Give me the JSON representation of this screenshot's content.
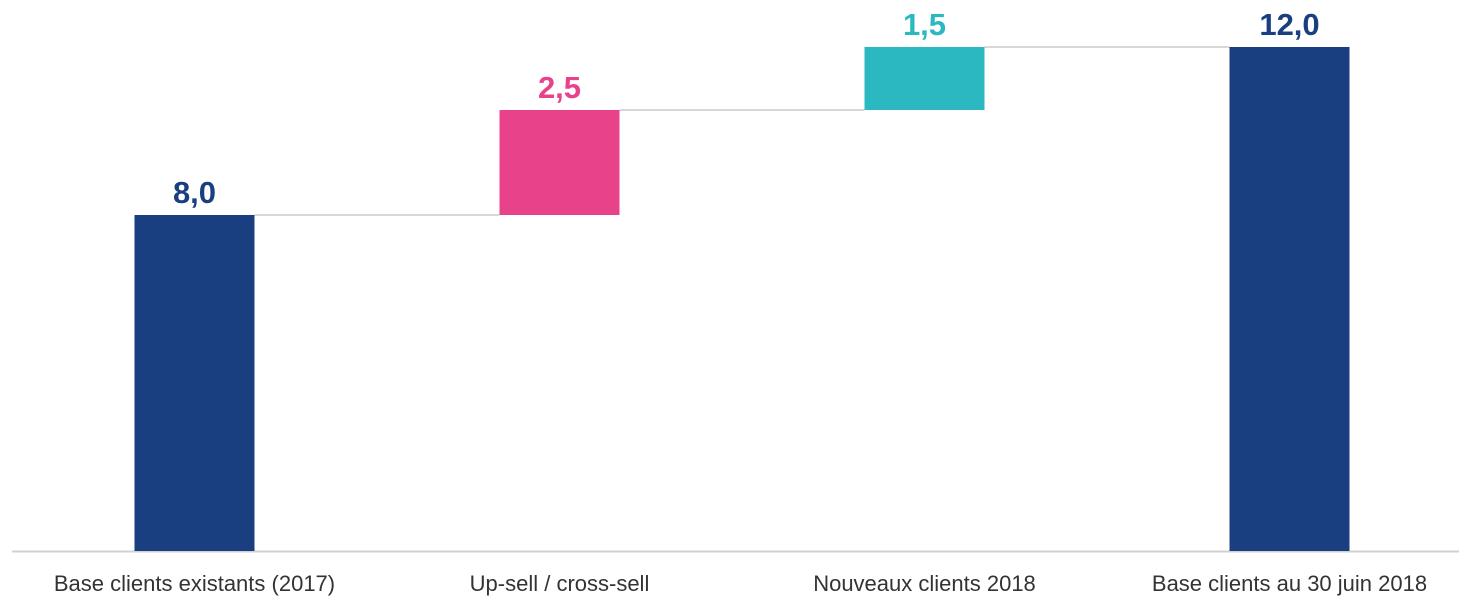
{
  "chart_data": {
    "type": "waterfall",
    "categories": [
      "Base clients existants (2017)",
      "Up-sell / cross-sell",
      "Nouveaux clients 2018",
      "Base clients au 30 juin 2018"
    ],
    "values": [
      8.0,
      2.5,
      1.5,
      12.0
    ],
    "value_labels": [
      "8,0",
      "2,5",
      "1,5",
      "12,0"
    ],
    "measure": [
      "absolute",
      "relative",
      "relative",
      "total"
    ],
    "colors": [
      "#1a3f80",
      "#e8438a",
      "#2bb8c1",
      "#1a3f80"
    ]
  }
}
